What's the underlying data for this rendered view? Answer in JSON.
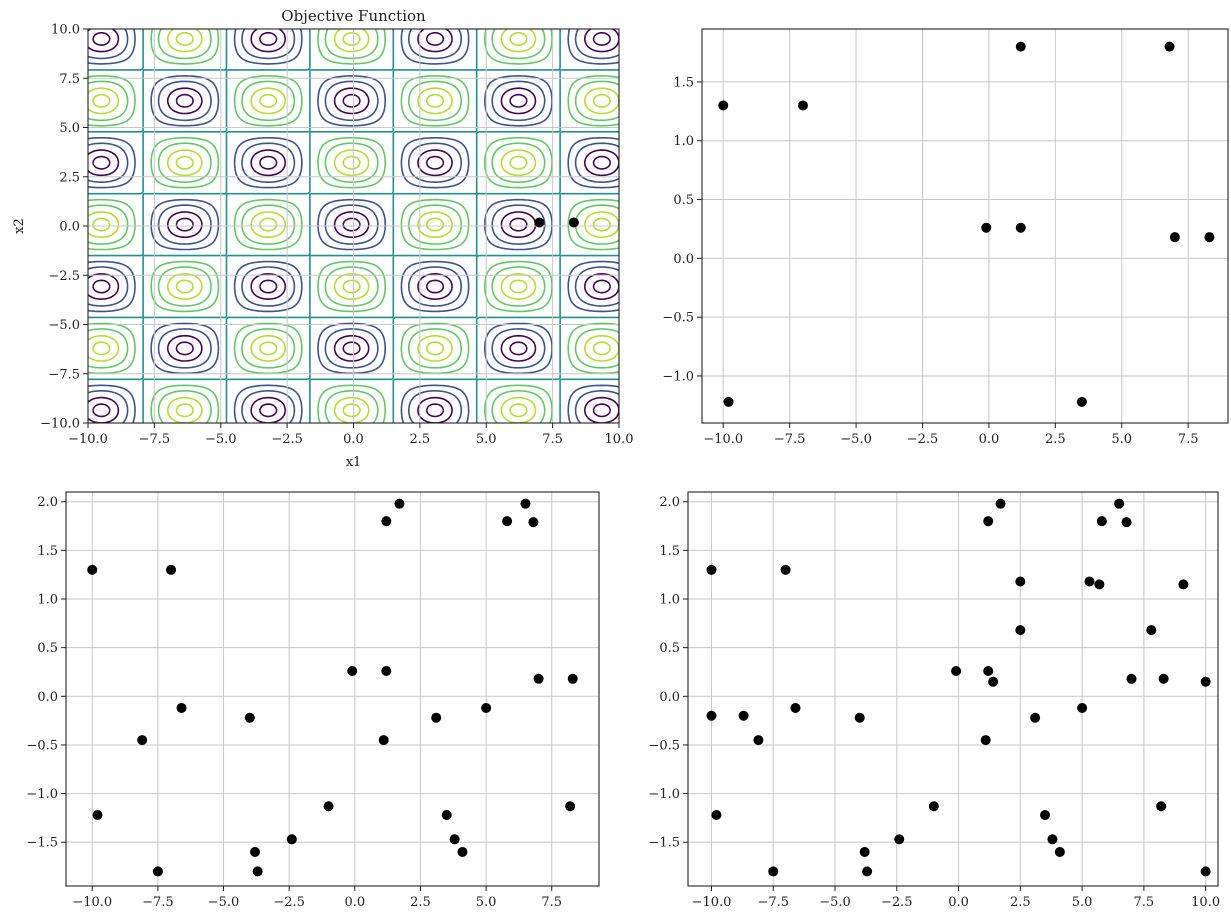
{
  "chart_data": [
    {
      "type": "contour",
      "title": "Objective Function",
      "xlabel": "x1",
      "ylabel": "x2",
      "xlim": [
        -10,
        10
      ],
      "ylim": [
        -10,
        10
      ],
      "xticks": [
        -10.0,
        -7.5,
        -5.0,
        -2.5,
        0.0,
        2.5,
        5.0,
        7.5,
        10.0
      ],
      "yticks": [
        -10.0,
        -7.5,
        -5.0,
        -2.5,
        0.0,
        2.5,
        5.0,
        7.5,
        10.0
      ],
      "xtick_labels": [
        "−10.0",
        "−7.5",
        "−5.0",
        "−2.5",
        "0.0",
        "2.5",
        "5.0",
        "7.5",
        "10.0"
      ],
      "ytick_labels": [
        "−10.0",
        "−7.5",
        "−5.0",
        "−2.5",
        "0.0",
        "2.5",
        "5.0",
        "7.5",
        "10.0"
      ],
      "grid": true,
      "colormap": "viridis",
      "colors": [
        "#440154",
        "#3b528b",
        "#21918c",
        "#5ec962",
        "#b5de2b"
      ],
      "points": [
        {
          "x": 7.0,
          "y": 0.18
        },
        {
          "x": 8.3,
          "y": 0.18
        }
      ]
    },
    {
      "type": "scatter",
      "xlim": [
        -10.8,
        9.0
      ],
      "ylim": [
        -1.4,
        1.95
      ],
      "xticks": [
        -10.0,
        -7.5,
        -5.0,
        -2.5,
        0.0,
        2.5,
        5.0,
        7.5
      ],
      "yticks": [
        -1.0,
        -0.5,
        0.0,
        0.5,
        1.0,
        1.5
      ],
      "xtick_labels": [
        "−10.0",
        "−7.5",
        "−5.0",
        "−2.5",
        "0.0",
        "2.5",
        "5.0",
        "7.5"
      ],
      "ytick_labels": [
        "−1.0",
        "−0.5",
        "0.0",
        "0.5",
        "1.0",
        "1.5"
      ],
      "grid": true,
      "color": "#000000",
      "points": [
        {
          "x": -10.0,
          "y": 1.3
        },
        {
          "x": -7.0,
          "y": 1.3
        },
        {
          "x": -9.8,
          "y": -1.22
        },
        {
          "x": 1.2,
          "y": 1.8
        },
        {
          "x": 6.8,
          "y": 1.8
        },
        {
          "x": -0.1,
          "y": 0.26
        },
        {
          "x": 1.2,
          "y": 0.26
        },
        {
          "x": 7.0,
          "y": 0.18
        },
        {
          "x": 8.3,
          "y": 0.18
        },
        {
          "x": 3.5,
          "y": -1.22
        }
      ]
    },
    {
      "type": "scatter",
      "xlim": [
        -11.0,
        9.3
      ],
      "ylim": [
        -1.95,
        2.1
      ],
      "xticks": [
        -10.0,
        -7.5,
        -5.0,
        -2.5,
        0.0,
        2.5,
        5.0,
        7.5
      ],
      "yticks": [
        -1.5,
        -1.0,
        -0.5,
        0.0,
        0.5,
        1.0,
        1.5,
        2.0
      ],
      "xtick_labels": [
        "−10.0",
        "−7.5",
        "−5.0",
        "−2.5",
        "0.0",
        "2.5",
        "5.0",
        "7.5"
      ],
      "ytick_labels": [
        "−1.5",
        "−1.0",
        "−0.5",
        "0.0",
        "0.5",
        "1.0",
        "1.5",
        "2.0"
      ],
      "grid": true,
      "color": "#000000",
      "points": [
        {
          "x": -10.0,
          "y": 1.3
        },
        {
          "x": -7.0,
          "y": 1.3
        },
        {
          "x": -9.8,
          "y": -1.22
        },
        {
          "x": -8.1,
          "y": -0.45
        },
        {
          "x": -6.6,
          "y": -0.12
        },
        {
          "x": -7.5,
          "y": -1.8
        },
        {
          "x": -4.0,
          "y": -0.22
        },
        {
          "x": -3.8,
          "y": -1.6
        },
        {
          "x": -3.7,
          "y": -1.8
        },
        {
          "x": -2.4,
          "y": -1.47
        },
        {
          "x": -1.0,
          "y": -1.13
        },
        {
          "x": -0.1,
          "y": 0.26
        },
        {
          "x": 1.1,
          "y": -0.45
        },
        {
          "x": 1.2,
          "y": 0.26
        },
        {
          "x": 1.2,
          "y": 1.8
        },
        {
          "x": 1.7,
          "y": 1.98
        },
        {
          "x": 3.1,
          "y": -0.22
        },
        {
          "x": 3.5,
          "y": -1.22
        },
        {
          "x": 3.8,
          "y": -1.47
        },
        {
          "x": 4.1,
          "y": -1.6
        },
        {
          "x": 5.0,
          "y": -0.12
        },
        {
          "x": 5.8,
          "y": 1.8
        },
        {
          "x": 6.5,
          "y": 1.98
        },
        {
          "x": 6.8,
          "y": 1.79
        },
        {
          "x": 7.0,
          "y": 0.18
        },
        {
          "x": 8.2,
          "y": -1.13
        },
        {
          "x": 8.3,
          "y": 0.18
        }
      ]
    },
    {
      "type": "scatter",
      "xlim": [
        -10.95,
        10.5
      ],
      "ylim": [
        -1.95,
        2.1
      ],
      "xticks": [
        -10.0,
        -7.5,
        -5.0,
        -2.5,
        0.0,
        2.5,
        5.0,
        7.5,
        10.0
      ],
      "yticks": [
        -1.5,
        -1.0,
        -0.5,
        0.0,
        0.5,
        1.0,
        1.5,
        2.0
      ],
      "xtick_labels": [
        "−10.0",
        "−7.5",
        "−5.0",
        "−2.5",
        "0.0",
        "2.5",
        "5.0",
        "7.5",
        "10.0"
      ],
      "ytick_labels": [
        "−1.5",
        "−1.0",
        "−0.5",
        "0.0",
        "0.5",
        "1.0",
        "1.5",
        "2.0"
      ],
      "grid": true,
      "color": "#000000",
      "points": [
        {
          "x": -10.0,
          "y": 1.3
        },
        {
          "x": -10.0,
          "y": -0.2
        },
        {
          "x": -9.8,
          "y": -1.22
        },
        {
          "x": -8.7,
          "y": -0.2
        },
        {
          "x": -8.1,
          "y": -0.45
        },
        {
          "x": -7.5,
          "y": -1.8
        },
        {
          "x": -7.0,
          "y": 1.3
        },
        {
          "x": -6.6,
          "y": -0.12
        },
        {
          "x": -4.0,
          "y": -0.22
        },
        {
          "x": -3.8,
          "y": -1.6
        },
        {
          "x": -3.7,
          "y": -1.8
        },
        {
          "x": -2.4,
          "y": -1.47
        },
        {
          "x": -1.0,
          "y": -1.13
        },
        {
          "x": -0.1,
          "y": 0.26
        },
        {
          "x": 1.1,
          "y": -0.45
        },
        {
          "x": 1.2,
          "y": 0.26
        },
        {
          "x": 1.2,
          "y": 1.8
        },
        {
          "x": 1.4,
          "y": 0.15
        },
        {
          "x": 1.7,
          "y": 1.98
        },
        {
          "x": 2.5,
          "y": 1.18
        },
        {
          "x": 2.5,
          "y": 0.68
        },
        {
          "x": 3.1,
          "y": -0.22
        },
        {
          "x": 3.5,
          "y": -1.22
        },
        {
          "x": 3.8,
          "y": -1.47
        },
        {
          "x": 4.1,
          "y": -1.6
        },
        {
          "x": 5.0,
          "y": -0.12
        },
        {
          "x": 5.3,
          "y": 1.18
        },
        {
          "x": 5.7,
          "y": 1.15
        },
        {
          "x": 5.8,
          "y": 1.8
        },
        {
          "x": 6.5,
          "y": 1.98
        },
        {
          "x": 6.8,
          "y": 1.79
        },
        {
          "x": 7.0,
          "y": 0.18
        },
        {
          "x": 7.8,
          "y": 0.68
        },
        {
          "x": 8.2,
          "y": -1.13
        },
        {
          "x": 8.3,
          "y": 0.18
        },
        {
          "x": 9.1,
          "y": 1.15
        },
        {
          "x": 10.0,
          "y": 0.15
        },
        {
          "x": 10.0,
          "y": -1.8
        }
      ]
    }
  ]
}
